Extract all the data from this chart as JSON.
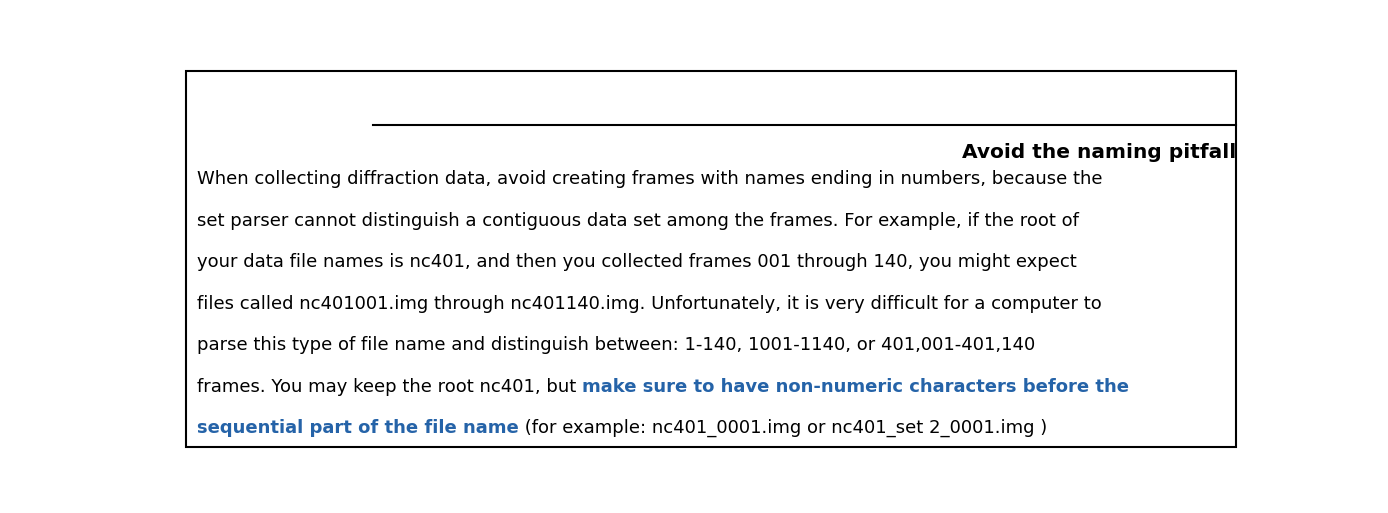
{
  "title": "Avoid the naming pitfall",
  "title_color": "#000000",
  "title_fontsize": 14.5,
  "line_color": "#000000",
  "body_fontsize": 13.0,
  "body_color": "#000000",
  "highlight_color": "#2563a8",
  "background_color": "#ffffff",
  "border_color": "#000000",
  "plain_lines": [
    "When collecting diffraction data, avoid creating frames with names ending in numbers, because the",
    "set parser cannot distinguish a contiguous data set among the frames. For example, if the root of",
    "your data file names is nc401, and then you collected frames 001 through 140, you might expect",
    "files called nc401001.img through nc401140.img. Unfortunately, it is very difficult for a computer to",
    "parse this type of file name and distinguish between: 1-140, 1001-1140, or 401,001-401,140"
  ],
  "line6_black": "frames. You may keep the root nc401, but ",
  "line6_blue": "make sure to have non-numeric characters before the",
  "line7_blue": "sequential part of the file name",
  "line7_black": " (for example: nc401_0001.img or nc401_set 2_0001.img )"
}
